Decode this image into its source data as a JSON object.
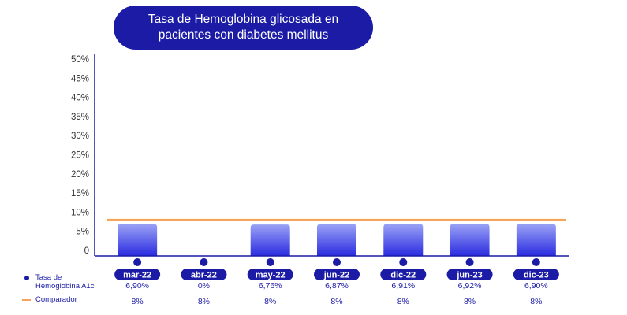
{
  "chart_data": {
    "type": "bar",
    "title": "Tasa de Hemoglobina glicosada en pacientes con diabetes mellitus",
    "categories": [
      "mar-22",
      "abr-22",
      "may-22",
      "jun-22",
      "dic-22",
      "jun-23",
      "dic-23"
    ],
    "y_ticks": [
      "0",
      "5%",
      "10%",
      "15%",
      "20%",
      "25%",
      "30%",
      "35%",
      "40%",
      "45%",
      "50%"
    ],
    "ylim": [
      0,
      50
    ],
    "grid": false,
    "series": [
      {
        "name": "Tasa de Hemoglobina A1c",
        "type": "bar",
        "color": "#1b1ba6",
        "values": [
          6.9,
          0,
          6.76,
          6.87,
          6.91,
          6.92,
          6.9
        ],
        "labels": [
          "6,90%",
          "0%",
          "6,76%",
          "6,87%",
          "6,91%",
          "6,92%",
          "6,90%"
        ]
      },
      {
        "name": "Comparador",
        "type": "line",
        "color": "#f7a35c",
        "values": [
          8,
          8,
          8,
          8,
          8,
          8,
          8
        ],
        "labels": [
          "8%",
          "8%",
          "8%",
          "8%",
          "8%",
          "8%",
          "8%"
        ]
      }
    ],
    "legend_position": "bottom-left"
  }
}
